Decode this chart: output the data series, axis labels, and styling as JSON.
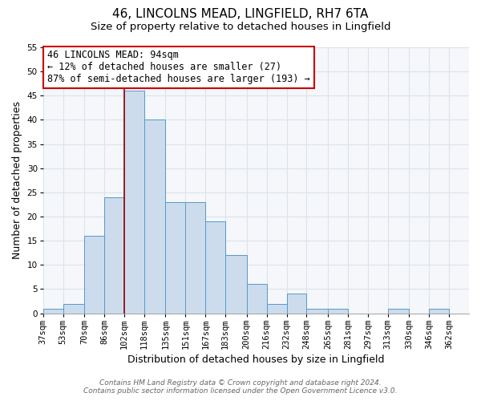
{
  "title": "46, LINCOLNS MEAD, LINGFIELD, RH7 6TA",
  "subtitle": "Size of property relative to detached houses in Lingfield",
  "xlabel": "Distribution of detached houses by size in Lingfield",
  "ylabel": "Number of detached properties",
  "bar_color": "#ccdcec",
  "bar_edge_color": "#5599cc",
  "background_color": "#ffffff",
  "plot_bg_color": "#f5f7fa",
  "grid_color": "#dde3ea",
  "categories": [
    "37sqm",
    "53sqm",
    "70sqm",
    "86sqm",
    "102sqm",
    "118sqm",
    "135sqm",
    "151sqm",
    "167sqm",
    "183sqm",
    "200sqm",
    "216sqm",
    "232sqm",
    "248sqm",
    "265sqm",
    "281sqm",
    "297sqm",
    "313sqm",
    "330sqm",
    "346sqm",
    "362sqm"
  ],
  "values": [
    1,
    2,
    16,
    24,
    46,
    40,
    23,
    23,
    19,
    12,
    6,
    2,
    4,
    1,
    1,
    0,
    0,
    1,
    0,
    1,
    0
  ],
  "ylim": [
    0,
    55
  ],
  "yticks": [
    0,
    5,
    10,
    15,
    20,
    25,
    30,
    35,
    40,
    45,
    50,
    55
  ],
  "vline_x": 102,
  "bin_edges": [
    37,
    53,
    70,
    86,
    102,
    118,
    135,
    151,
    167,
    183,
    200,
    216,
    232,
    248,
    265,
    281,
    297,
    313,
    330,
    346,
    362
  ],
  "annotation_title": "46 LINCOLNS MEAD: 94sqm",
  "annotation_line1": "← 12% of detached houses are smaller (27)",
  "annotation_line2": "87% of semi-detached houses are larger (193) →",
  "footer_line1": "Contains HM Land Registry data © Crown copyright and database right 2024.",
  "footer_line2": "Contains public sector information licensed under the Open Government Licence v3.0.",
  "title_fontsize": 11,
  "subtitle_fontsize": 9.5,
  "axis_fontsize": 9,
  "tick_fontsize": 7.5,
  "annotation_fontsize": 8.5,
  "footer_fontsize": 6.5
}
